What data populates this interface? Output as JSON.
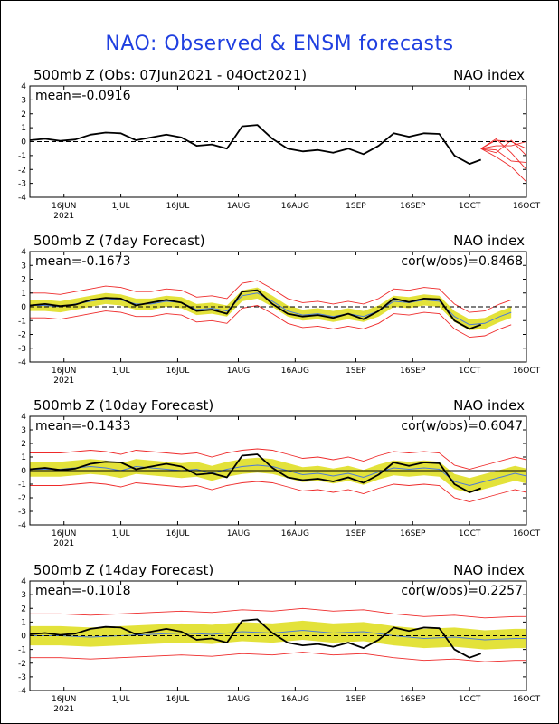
{
  "title": "NAO: Observed & ENSM forecasts",
  "colors": {
    "title": "#1f3fe0",
    "obs": "#000000",
    "ens_mean": "#4c7ad8",
    "ens_spread": "#e3e23a",
    "ens_members": "#ee2a2a",
    "zero_line": "#000000"
  },
  "chart_data": [
    {
      "type": "line",
      "title": "500mb Z (Obs: 07Jun2021 - 04Oct2021)",
      "right_label": "NAO index",
      "stat_left": "mean=-0.0916",
      "stat_right": "",
      "ylim": [
        -4,
        4
      ],
      "yticks": [
        4,
        3,
        2,
        1,
        0,
        -1,
        -2,
        -3,
        -4
      ],
      "xticks": [
        "16JUN",
        "1JUL",
        "16JUL",
        "1AUG",
        "16AUG",
        "1SEP",
        "16SEP",
        "1OCT",
        "16OCT"
      ],
      "x_sublabel": "2021",
      "x_range": [
        0,
        131
      ],
      "tick_positions": [
        9,
        24,
        39,
        55,
        70,
        86,
        101,
        116,
        131
      ],
      "zero_line": "dashed",
      "observed": [
        [
          0,
          0.1
        ],
        [
          4,
          0.2
        ],
        [
          8,
          0.05
        ],
        [
          12,
          0.15
        ],
        [
          16,
          0.5
        ],
        [
          20,
          0.65
        ],
        [
          24,
          0.6
        ],
        [
          28,
          0.1
        ],
        [
          32,
          0.3
        ],
        [
          36,
          0.5
        ],
        [
          40,
          0.3
        ],
        [
          44,
          -0.3
        ],
        [
          48,
          -0.2
        ],
        [
          52,
          -0.5
        ],
        [
          56,
          1.1
        ],
        [
          60,
          1.2
        ],
        [
          64,
          0.2
        ],
        [
          68,
          -0.5
        ],
        [
          72,
          -0.7
        ],
        [
          76,
          -0.6
        ],
        [
          80,
          -0.8
        ],
        [
          84,
          -0.5
        ],
        [
          88,
          -0.9
        ],
        [
          92,
          -0.3
        ],
        [
          96,
          0.6
        ],
        [
          100,
          0.35
        ],
        [
          104,
          0.6
        ],
        [
          108,
          0.55
        ],
        [
          112,
          -1.0
        ],
        [
          116,
          -1.6
        ],
        [
          119,
          -1.3
        ]
      ],
      "forecast_members": [
        [
          [
            119,
            -0.5
          ],
          [
            123,
            -0.8
          ],
          [
            127,
            0.1
          ],
          [
            131,
            -1.0
          ]
        ],
        [
          [
            119,
            -0.5
          ],
          [
            123,
            0.2
          ],
          [
            127,
            -0.8
          ],
          [
            131,
            -2.0
          ]
        ],
        [
          [
            119,
            -0.5
          ],
          [
            123,
            -1.1
          ],
          [
            127,
            -1.8
          ],
          [
            131,
            -2.9
          ]
        ],
        [
          [
            119,
            -0.5
          ],
          [
            123,
            -0.3
          ],
          [
            127,
            -0.3
          ],
          [
            131,
            0.0
          ]
        ],
        [
          [
            119,
            -0.5
          ],
          [
            123,
            -0.6
          ],
          [
            127,
            -1.4
          ],
          [
            131,
            -1.5
          ]
        ],
        [
          [
            119,
            -0.5
          ],
          [
            123,
            0.1
          ],
          [
            127,
            0.0
          ],
          [
            131,
            -0.5
          ]
        ]
      ]
    },
    {
      "type": "line",
      "title": "500mb Z (7day Forecast)",
      "right_label": "NAO index",
      "stat_left": "mean=-0.1673",
      "stat_right": "cor(w/obs)=0.8468",
      "ylim": [
        -4,
        4
      ],
      "yticks": [
        4,
        3,
        2,
        1,
        0,
        -1,
        -2,
        -3,
        -4
      ],
      "xticks": [
        "16JUN",
        "1JUL",
        "16JUL",
        "1AUG",
        "16AUG",
        "1SEP",
        "16SEP",
        "1OCT",
        "16OCT"
      ],
      "x_sublabel": "2021",
      "x_range": [
        0,
        131
      ],
      "tick_positions": [
        9,
        24,
        39,
        55,
        70,
        86,
        101,
        116,
        131
      ],
      "zero_line": "dashed",
      "observed": [
        [
          0,
          0.1
        ],
        [
          4,
          0.2
        ],
        [
          8,
          0.05
        ],
        [
          12,
          0.15
        ],
        [
          16,
          0.5
        ],
        [
          20,
          0.65
        ],
        [
          24,
          0.6
        ],
        [
          28,
          0.1
        ],
        [
          32,
          0.3
        ],
        [
          36,
          0.5
        ],
        [
          40,
          0.3
        ],
        [
          44,
          -0.3
        ],
        [
          48,
          -0.2
        ],
        [
          52,
          -0.5
        ],
        [
          56,
          1.1
        ],
        [
          60,
          1.2
        ],
        [
          64,
          0.2
        ],
        [
          68,
          -0.5
        ],
        [
          72,
          -0.7
        ],
        [
          76,
          -0.6
        ],
        [
          80,
          -0.8
        ],
        [
          84,
          -0.5
        ],
        [
          88,
          -0.9
        ],
        [
          92,
          -0.3
        ],
        [
          96,
          0.6
        ],
        [
          100,
          0.35
        ],
        [
          104,
          0.6
        ],
        [
          108,
          0.55
        ],
        [
          112,
          -1.0
        ],
        [
          116,
          -1.6
        ],
        [
          119,
          -1.3
        ]
      ],
      "ens_mean": [
        [
          0,
          0.1
        ],
        [
          4,
          0.1
        ],
        [
          8,
          0.0
        ],
        [
          12,
          0.2
        ],
        [
          16,
          0.4
        ],
        [
          20,
          0.6
        ],
        [
          24,
          0.5
        ],
        [
          28,
          0.2
        ],
        [
          32,
          0.2
        ],
        [
          36,
          0.4
        ],
        [
          40,
          0.3
        ],
        [
          44,
          -0.2
        ],
        [
          48,
          -0.1
        ],
        [
          52,
          -0.3
        ],
        [
          56,
          0.8
        ],
        [
          60,
          1.0
        ],
        [
          64,
          0.4
        ],
        [
          68,
          -0.3
        ],
        [
          72,
          -0.6
        ],
        [
          76,
          -0.5
        ],
        [
          80,
          -0.7
        ],
        [
          84,
          -0.5
        ],
        [
          88,
          -0.7
        ],
        [
          92,
          -0.3
        ],
        [
          96,
          0.4
        ],
        [
          100,
          0.3
        ],
        [
          104,
          0.5
        ],
        [
          108,
          0.4
        ],
        [
          112,
          -0.7
        ],
        [
          116,
          -1.3
        ],
        [
          120,
          -1.2
        ],
        [
          124,
          -0.7
        ],
        [
          127,
          -0.4
        ]
      ],
      "spread_halfwidth": 0.4,
      "member_halfwidth": 0.9
    },
    {
      "type": "line",
      "title": "500mb Z (10day Forecast)",
      "right_label": "NAO index",
      "stat_left": "mean=-0.1433",
      "stat_right": "cor(w/obs)=0.6047",
      "ylim": [
        -4,
        4
      ],
      "yticks": [
        4,
        3,
        2,
        1,
        0,
        -1,
        -2,
        -3,
        -4
      ],
      "xticks": [
        "16JUN",
        "1JUL",
        "16JUL",
        "1AUG",
        "16AUG",
        "1SEP",
        "16SEP",
        "1OCT",
        "16OCT"
      ],
      "x_sublabel": "2021",
      "x_range": [
        0,
        131
      ],
      "tick_positions": [
        9,
        24,
        39,
        55,
        70,
        86,
        101,
        116,
        131
      ],
      "zero_line": "solid",
      "observed": [
        [
          0,
          0.1
        ],
        [
          4,
          0.2
        ],
        [
          8,
          0.05
        ],
        [
          12,
          0.15
        ],
        [
          16,
          0.5
        ],
        [
          20,
          0.65
        ],
        [
          24,
          0.6
        ],
        [
          28,
          0.1
        ],
        [
          32,
          0.3
        ],
        [
          36,
          0.5
        ],
        [
          40,
          0.3
        ],
        [
          44,
          -0.3
        ],
        [
          48,
          -0.2
        ],
        [
          52,
          -0.5
        ],
        [
          56,
          1.1
        ],
        [
          60,
          1.2
        ],
        [
          64,
          0.2
        ],
        [
          68,
          -0.5
        ],
        [
          72,
          -0.7
        ],
        [
          76,
          -0.6
        ],
        [
          80,
          -0.8
        ],
        [
          84,
          -0.5
        ],
        [
          88,
          -0.9
        ],
        [
          92,
          -0.3
        ],
        [
          96,
          0.6
        ],
        [
          100,
          0.35
        ],
        [
          104,
          0.6
        ],
        [
          108,
          0.55
        ],
        [
          112,
          -1.0
        ],
        [
          116,
          -1.6
        ],
        [
          119,
          -1.3
        ]
      ],
      "ens_mean": [
        [
          0,
          0.1
        ],
        [
          4,
          0.1
        ],
        [
          8,
          0.1
        ],
        [
          12,
          0.2
        ],
        [
          16,
          0.3
        ],
        [
          20,
          0.2
        ],
        [
          24,
          0.0
        ],
        [
          28,
          0.3
        ],
        [
          32,
          0.2
        ],
        [
          36,
          0.1
        ],
        [
          40,
          0.0
        ],
        [
          44,
          0.1
        ],
        [
          48,
          -0.2
        ],
        [
          52,
          0.1
        ],
        [
          56,
          0.3
        ],
        [
          60,
          0.4
        ],
        [
          64,
          0.3
        ],
        [
          68,
          0.0
        ],
        [
          72,
          -0.3
        ],
        [
          76,
          -0.2
        ],
        [
          80,
          -0.4
        ],
        [
          84,
          -0.2
        ],
        [
          88,
          -0.5
        ],
        [
          92,
          -0.1
        ],
        [
          96,
          0.2
        ],
        [
          100,
          0.1
        ],
        [
          104,
          0.2
        ],
        [
          108,
          0.1
        ],
        [
          112,
          -0.8
        ],
        [
          116,
          -1.1
        ],
        [
          120,
          -0.8
        ],
        [
          124,
          -0.5
        ],
        [
          128,
          -0.2
        ],
        [
          131,
          -0.4
        ]
      ],
      "spread_halfwidth": 0.55,
      "member_halfwidth": 1.2
    },
    {
      "type": "line",
      "title": "500mb Z (14day Forecast)",
      "right_label": "NAO index",
      "stat_left": "mean=-0.1018",
      "stat_right": "cor(w/obs)=0.2257",
      "ylim": [
        -4,
        4
      ],
      "yticks": [
        4,
        3,
        2,
        1,
        0,
        -1,
        -2,
        -3,
        -4
      ],
      "xticks": [
        "16JUN",
        "1JUL",
        "16JUL",
        "1AUG",
        "16AUG",
        "1SEP",
        "16SEP",
        "1OCT",
        "16OCT"
      ],
      "x_sublabel": "2021",
      "x_range": [
        0,
        131
      ],
      "tick_positions": [
        9,
        24,
        39,
        55,
        70,
        86,
        101,
        116,
        131
      ],
      "zero_line": "dashed",
      "observed": [
        [
          0,
          0.1
        ],
        [
          4,
          0.2
        ],
        [
          8,
          0.05
        ],
        [
          12,
          0.15
        ],
        [
          16,
          0.5
        ],
        [
          20,
          0.65
        ],
        [
          24,
          0.6
        ],
        [
          28,
          0.1
        ],
        [
          32,
          0.3
        ],
        [
          36,
          0.5
        ],
        [
          40,
          0.3
        ],
        [
          44,
          -0.3
        ],
        [
          48,
          -0.2
        ],
        [
          52,
          -0.5
        ],
        [
          56,
          1.1
        ],
        [
          60,
          1.2
        ],
        [
          64,
          0.2
        ],
        [
          68,
          -0.5
        ],
        [
          72,
          -0.7
        ],
        [
          76,
          -0.6
        ],
        [
          80,
          -0.8
        ],
        [
          84,
          -0.5
        ],
        [
          88,
          -0.9
        ],
        [
          92,
          -0.3
        ],
        [
          96,
          0.6
        ],
        [
          100,
          0.35
        ],
        [
          104,
          0.6
        ],
        [
          108,
          0.55
        ],
        [
          112,
          -1.0
        ],
        [
          116,
          -1.6
        ],
        [
          119,
          -1.3
        ]
      ],
      "ens_mean": [
        [
          0,
          0.0
        ],
        [
          8,
          0.0
        ],
        [
          16,
          -0.1
        ],
        [
          24,
          0.0
        ],
        [
          32,
          0.1
        ],
        [
          40,
          0.2
        ],
        [
          48,
          0.1
        ],
        [
          56,
          0.3
        ],
        [
          64,
          0.2
        ],
        [
          72,
          0.4
        ],
        [
          80,
          0.2
        ],
        [
          88,
          0.3
        ],
        [
          96,
          0.0
        ],
        [
          104,
          -0.2
        ],
        [
          112,
          -0.1
        ],
        [
          120,
          -0.3
        ],
        [
          128,
          -0.2
        ],
        [
          131,
          -0.2
        ]
      ],
      "spread_halfwidth": 0.7,
      "member_halfwidth": 1.6
    }
  ]
}
